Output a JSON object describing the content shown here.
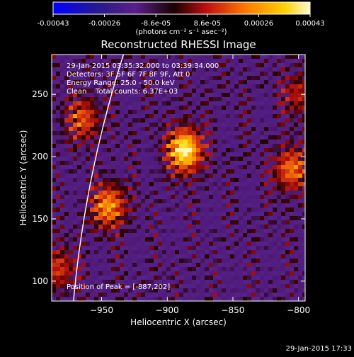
{
  "colorbar": {
    "ticks": [
      "-0.00043",
      "-0.00026",
      "-8.6e-05",
      "8.6e-05",
      "0.00026",
      "0.00043"
    ],
    "unit_label": "(photons cm⁻² s⁻¹ asec⁻²)"
  },
  "chart_data": {
    "type": "heatmap",
    "title": "Reconstructed RHESSI Image",
    "xlabel": "Heliocentric X (arcsec)",
    "ylabel": "Heliocentric Y (arcsec)",
    "xlim": [
      -988,
      -795
    ],
    "ylim": [
      84,
      282
    ],
    "x_ticks": [
      -950,
      -900,
      -850,
      -800
    ],
    "y_ticks": [
      100,
      150,
      200,
      250
    ],
    "colorbar_range": [
      -0.00043,
      0.00043
    ],
    "peak": {
      "x": -887,
      "y": 202
    },
    "sources": [
      {
        "x": -887,
        "y": 205,
        "value": 0.00043
      },
      {
        "x": -945,
        "y": 160,
        "value": 0.0003
      },
      {
        "x": -965,
        "y": 230,
        "value": 0.00022
      },
      {
        "x": -805,
        "y": 190,
        "value": 0.00026
      },
      {
        "x": -800,
        "y": 250,
        "value": 0.00015
      },
      {
        "x": -983,
        "y": 110,
        "value": 0.00018
      }
    ],
    "annotations": {
      "time_range": "29-Jan-2015 03:35:32.000 to 03:39:34.000",
      "detectors": "Detectors: 3F 5F 6F 7F 8F 9F, Att 0",
      "energy": "Energy Range: 25.0 - 50.0 keV",
      "clean": "Clean    Total counts: 6.37E+03",
      "peak_text": "Position of Peak = [-887,202]"
    }
  },
  "footer": {
    "timestamp": "29-Jan-2015 17:33"
  }
}
